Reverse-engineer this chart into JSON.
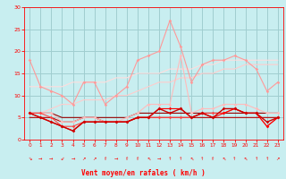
{
  "x": [
    0,
    1,
    2,
    3,
    4,
    5,
    6,
    7,
    8,
    9,
    10,
    11,
    12,
    13,
    14,
    15,
    16,
    17,
    18,
    19,
    20,
    21,
    22,
    23
  ],
  "series": [
    {
      "color": "#FF9999",
      "alpha": 1.0,
      "lw": 0.8,
      "marker": "D",
      "ms": 1.8,
      "values": [
        18,
        12,
        11,
        10,
        8,
        13,
        13,
        8,
        10,
        12,
        18,
        19,
        20,
        27,
        21,
        13,
        17,
        18,
        18,
        19,
        18,
        16,
        11,
        13
      ]
    },
    {
      "color": "#FFBBBB",
      "alpha": 1.0,
      "lw": 0.8,
      "marker": "D",
      "ms": 1.8,
      "values": [
        6,
        6,
        6,
        4,
        4,
        5,
        5,
        4,
        4,
        5,
        6,
        8,
        8,
        8,
        19,
        6,
        7,
        7,
        8,
        8,
        8,
        7,
        6,
        6
      ]
    },
    {
      "color": "#FFCCCC",
      "alpha": 1.0,
      "lw": 0.8,
      "marker": null,
      "ms": 0,
      "values": [
        6,
        6,
        7,
        8,
        8,
        9,
        9,
        9,
        10,
        10,
        11,
        12,
        13,
        13,
        14,
        14,
        15,
        15,
        16,
        16,
        17,
        17,
        17,
        17
      ]
    },
    {
      "color": "#FFDDDD",
      "alpha": 1.0,
      "lw": 0.8,
      "marker": null,
      "ms": 0,
      "values": [
        12,
        12,
        12,
        12,
        13,
        13,
        13,
        13,
        14,
        14,
        15,
        15,
        15,
        16,
        16,
        16,
        17,
        17,
        18,
        18,
        18,
        18,
        18,
        18
      ]
    },
    {
      "color": "#FF4444",
      "alpha": 1.0,
      "lw": 0.8,
      "marker": "D",
      "ms": 1.8,
      "values": [
        6,
        6,
        5,
        3,
        3,
        4,
        4,
        4,
        4,
        4,
        5,
        5,
        5,
        5,
        5,
        5,
        6,
        6,
        6,
        7,
        6,
        6,
        3,
        5
      ]
    },
    {
      "color": "#FF0000",
      "alpha": 1.0,
      "lw": 0.8,
      "marker": "D",
      "ms": 1.8,
      "values": [
        6,
        5,
        4,
        3,
        2,
        4,
        4,
        4,
        4,
        4,
        5,
        5,
        7,
        7,
        7,
        5,
        6,
        5,
        6,
        7,
        6,
        6,
        3,
        5
      ]
    },
    {
      "color": "#CC0000",
      "alpha": 1.0,
      "lw": 1.0,
      "marker": "D",
      "ms": 1.8,
      "values": [
        6,
        5,
        4,
        3,
        2,
        4,
        4,
        4,
        4,
        4,
        5,
        5,
        7,
        6,
        7,
        5,
        6,
        5,
        7,
        7,
        6,
        6,
        4,
        5
      ]
    },
    {
      "color": "#BB0000",
      "alpha": 1.0,
      "lw": 0.8,
      "marker": null,
      "ms": 0,
      "values": [
        5,
        5,
        5,
        4,
        4,
        5,
        5,
        4,
        4,
        4,
        5,
        5,
        5,
        5,
        5,
        5,
        5,
        5,
        5,
        5,
        5,
        5,
        5,
        5
      ]
    },
    {
      "color": "#990000",
      "alpha": 1.0,
      "lw": 0.8,
      "marker": null,
      "ms": 0,
      "values": [
        6,
        6,
        6,
        5,
        5,
        5,
        5,
        5,
        5,
        5,
        6,
        6,
        6,
        6,
        6,
        6,
        6,
        6,
        6,
        6,
        6,
        6,
        6,
        6
      ]
    }
  ],
  "wind_symbols": [
    "⇘",
    "→",
    "→",
    "⇙",
    "→",
    "↗",
    "↗",
    "⇑",
    "→",
    "⇑",
    "⇑",
    "⇖",
    "→",
    "↑",
    "↑",
    "⇖",
    "↑",
    "⇑",
    "⇖",
    "↑",
    "⇖",
    "↑",
    "↑",
    "↗"
  ],
  "xlabel": "Vent moyen/en rafales ( km/h )",
  "ylim": [
    0,
    30
  ],
  "xlim": [
    -0.5,
    23.5
  ],
  "yticks": [
    0,
    5,
    10,
    15,
    20,
    25,
    30
  ],
  "xticks": [
    0,
    1,
    2,
    3,
    4,
    5,
    6,
    7,
    8,
    9,
    10,
    11,
    12,
    13,
    14,
    15,
    16,
    17,
    18,
    19,
    20,
    21,
    22,
    23
  ],
  "bg_color": "#C8EEF0",
  "grid_color": "#A0CDD0",
  "text_color": "#FF0000",
  "tick_color": "#FF0000"
}
